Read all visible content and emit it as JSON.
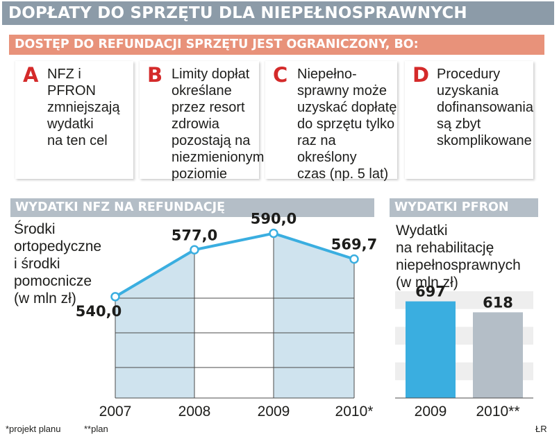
{
  "title": "DOPŁATY DO SPRZĘTU DLA NIEPEŁNOSPRAWNYCH",
  "subtitle": "DOSTĘP DO REFUNDACJI SPRZĘTU JEST OGRANICZONY, BO:",
  "reasons": [
    {
      "letter": "A",
      "text": "NFZ i PFRON\nzmniejszają\nwydatki\nna ten cel"
    },
    {
      "letter": "B",
      "text": "Limity dopłat\nokreślane\nprzez resort\nzdrowia\npozostają na\nniezmienionym\npoziomie"
    },
    {
      "letter": "C",
      "text": "Niepełno-\nsprawny może\nuzyskać dopłatę\ndo sprzętu tylko\nraz na określony\nczas (np. 5 lat)"
    },
    {
      "letter": "D",
      "text": "Procedury\nuzyskania\ndofinansowania\nsą zbyt\nskomplikowane"
    }
  ],
  "colors": {
    "title_bg": "#8c9ba8",
    "subtitle_bg": "#e8927a",
    "section_bg": "#b4bec7",
    "accent_letter": "#d42a2a",
    "line": "#3aaee0",
    "fill": "#cfe3ee",
    "bar_2009": "#3aaee0",
    "bar_2010": "#b4bec7"
  },
  "chart_data": [
    {
      "type": "line",
      "title": "WYDATKI NFZ NA REFUNDACJĘ",
      "ylabel": "Środki\nortopedyczne\ni środki\npomocnicze\n(w mln zł)",
      "x": [
        "2007",
        "2008",
        "2009",
        "2010*"
      ],
      "values": [
        540.0,
        577.0,
        590.0,
        569.7
      ],
      "labels": [
        "540,0",
        "577,0",
        "590,0",
        "569,7"
      ],
      "ylim": [
        460,
        610
      ]
    },
    {
      "type": "bar",
      "title": "WYDATKI PFRON",
      "ylabel": "Wydatki\nna rehabilitację\nniepełnosprawnych\n(w mln zł)",
      "categories": [
        "2009",
        "2010**"
      ],
      "values": [
        697,
        618
      ],
      "labels": [
        "697",
        "618"
      ],
      "ylim": [
        0,
        770
      ]
    }
  ],
  "footnotes": {
    "left": "*projekt planu",
    "plan": "**plan",
    "credit": "ŁR"
  }
}
